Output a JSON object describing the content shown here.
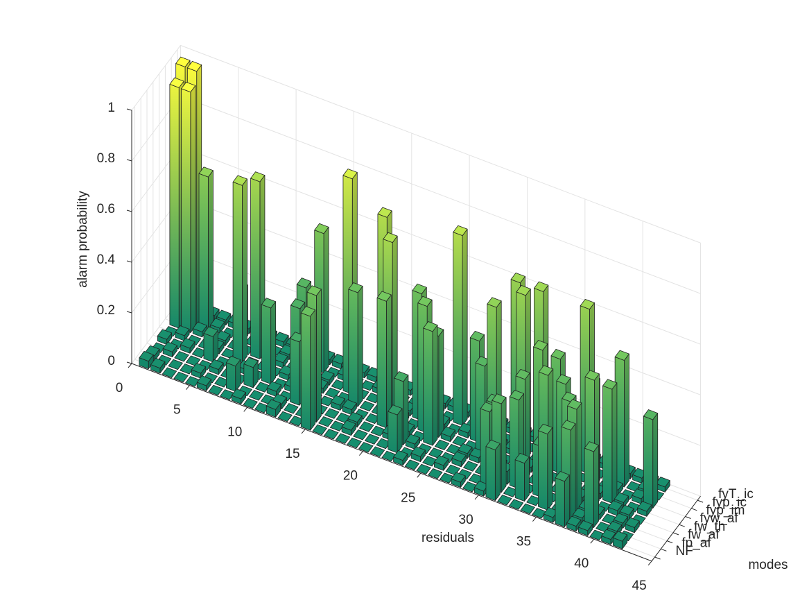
{
  "chart_data": {
    "type": "bar3",
    "xlabel": "residuals",
    "ylabel": "modes",
    "zlabel": "alarm probability",
    "x": [
      1,
      2,
      3,
      4,
      5,
      6,
      7,
      8,
      9,
      10,
      11,
      12,
      13,
      14,
      15,
      16,
      17,
      18,
      19,
      20,
      21,
      22,
      23,
      24,
      25,
      26,
      27,
      28,
      29,
      30,
      31,
      32,
      33,
      34,
      35,
      36,
      37,
      38,
      39,
      40,
      41,
      42
    ],
    "xlim": [
      0,
      45
    ],
    "xticks": [
      0,
      5,
      10,
      15,
      20,
      25,
      30,
      35,
      40,
      45
    ],
    "zlim": [
      0,
      1
    ],
    "zticks": [
      0,
      0.2,
      0.4,
      0.6,
      0.8,
      1
    ],
    "grid": true,
    "colormap": [
      "#148769",
      "#6ebe5a",
      "#fafa3c"
    ],
    "series": [
      {
        "name": "NF",
        "values": [
          0.03,
          0.02,
          0,
          0,
          0,
          0.02,
          0,
          0,
          0.02,
          0,
          0,
          0.03,
          0,
          0,
          0.45,
          0,
          0,
          0,
          0,
          0,
          0,
          0,
          0.02,
          0,
          0,
          0,
          0,
          0.02,
          0,
          0.02,
          0.2,
          0,
          0,
          0,
          0,
          0.02,
          0.18,
          0.02,
          0.02,
          0,
          0.02,
          0.03
        ]
      },
      {
        "name": "fp_af",
        "values": [
          0.02,
          0,
          0,
          0,
          0.02,
          0,
          0,
          0.1,
          0,
          0,
          0,
          0.02,
          0,
          0,
          0.5,
          0,
          0,
          0.02,
          0,
          0,
          0,
          0.15,
          0,
          0.02,
          0,
          0.02,
          0,
          0,
          0,
          0.3,
          0.35,
          0,
          0.15,
          0,
          0.3,
          0,
          0.35,
          0.02,
          0.3,
          0,
          0.02,
          0
        ]
      },
      {
        "name": "fw_af",
        "values": [
          0,
          0.02,
          0,
          0,
          0,
          0.02,
          0,
          0,
          0.08,
          0,
          0.02,
          0,
          0.25,
          0,
          0,
          0,
          0,
          0.02,
          0,
          0,
          0.02,
          0.25,
          0.02,
          0,
          0,
          0,
          0.02,
          0,
          0,
          0.3,
          0.05,
          0.35,
          0,
          0.2,
          0,
          0,
          0.4,
          0.02,
          0.02,
          0,
          0.02,
          0.02
        ]
      },
      {
        "name": "fw_th",
        "values": [
          0.02,
          0,
          0.02,
          0,
          0.1,
          0,
          0,
          0.02,
          0,
          0.3,
          0,
          0.02,
          0,
          0,
          0,
          0.02,
          0.02,
          0,
          0,
          0.5,
          0,
          0.02,
          0,
          0.45,
          0,
          0,
          0.02,
          0.02,
          0.05,
          0.02,
          0,
          0.4,
          0,
          0.45,
          0,
          0.38,
          0.02,
          0.5,
          0,
          0.02,
          0.02,
          0
        ]
      },
      {
        "name": "fyw_af",
        "values": [
          0,
          0.02,
          0,
          0,
          0.02,
          0,
          0.7,
          0,
          0,
          0,
          0.02,
          0.3,
          0,
          0.02,
          0,
          0,
          0.45,
          0,
          0,
          0.7,
          0.02,
          0,
          0.5,
          0.4,
          0.02,
          0,
          0,
          0.35,
          0.6,
          0,
          0,
          0.02,
          0.5,
          0,
          0.4,
          0,
          0,
          0.02,
          0.45,
          0.02,
          0,
          0.02
        ]
      },
      {
        "name": "fyp_im",
        "values": [
          0.95,
          0.95,
          0.02,
          0,
          0.02,
          0,
          0,
          0.7,
          0,
          0.02,
          0,
          0.35,
          0,
          0.02,
          0,
          0.85,
          0,
          0,
          0.75,
          0,
          0.02,
          0.5,
          0,
          0.02,
          0,
          0.02,
          0.4,
          0,
          0.02,
          0.02,
          0.65,
          0,
          0,
          0.45,
          0,
          0,
          0.4,
          0,
          0.02,
          0,
          0.02,
          0.35
        ]
      },
      {
        "name": "fyp_ic",
        "values": [
          1.0,
          1.0,
          0.6,
          0.02,
          0,
          0.2,
          0,
          0.02,
          0,
          0.02,
          0,
          0.02,
          0.55,
          0,
          0.02,
          0,
          0,
          0.02,
          0,
          0,
          0,
          0.02,
          0.02,
          0,
          0.75,
          0,
          0.02,
          0,
          0,
          0.65,
          0,
          0.65,
          0,
          0.02,
          0.02,
          0.65,
          0,
          0.02,
          0.5,
          0,
          0.02,
          0
        ]
      },
      {
        "name": "fyT_ic",
        "values": [
          0.02,
          0.02,
          0.02,
          0.02,
          0.02,
          0.02,
          0.02,
          0.02,
          0.02,
          0.02,
          0.02,
          0.02,
          0.02,
          0.02,
          0.02,
          0.02,
          0.02,
          0.02,
          0.02,
          0.02,
          0.02,
          0.02,
          0.02,
          0.02,
          0.02,
          0.02,
          0.02,
          0.02,
          0.02,
          0.02,
          0.02,
          0.02,
          0.02,
          0.02,
          0.02,
          0.02,
          0.02,
          0.02,
          0.02,
          0.02,
          0.02,
          0.02
        ]
      }
    ]
  }
}
